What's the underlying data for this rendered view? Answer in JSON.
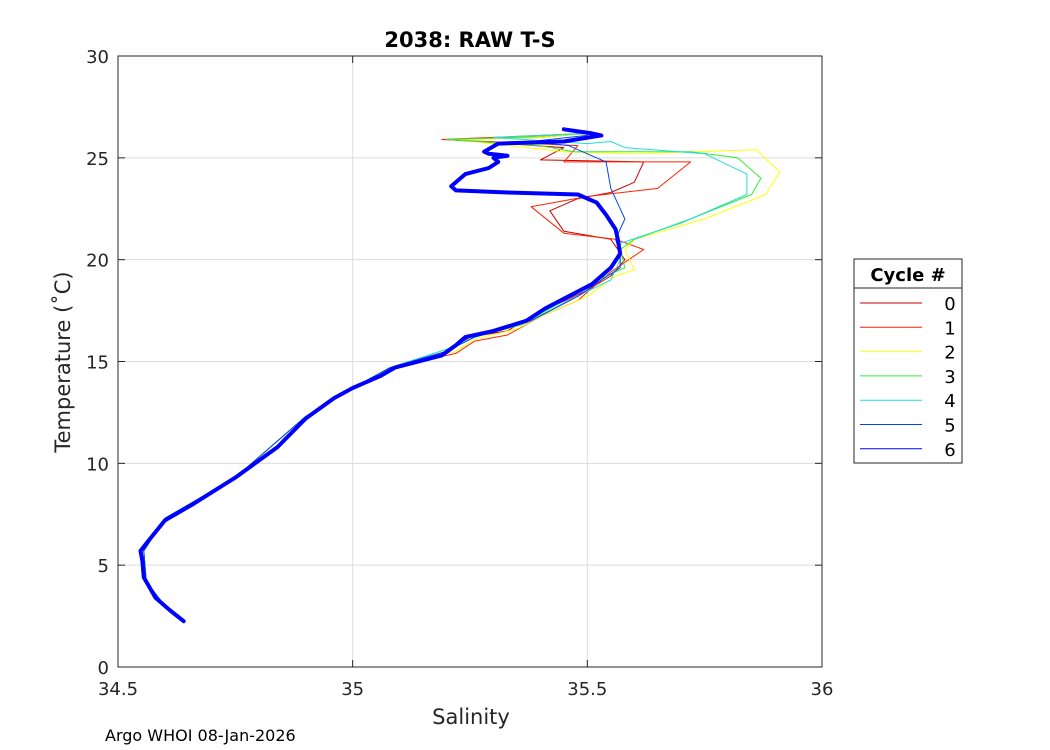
{
  "chart_data": {
    "type": "line",
    "title": "2038: RAW T-S",
    "xlabel": "Salinity",
    "ylabel": "Temperature (˚C)",
    "xlim": [
      34.5,
      36
    ],
    "ylim": [
      0,
      30
    ],
    "xticks": [
      "34.5",
      "35",
      "35.5",
      "36"
    ],
    "yticks": [
      "0",
      "5",
      "10",
      "15",
      "20",
      "25",
      "30"
    ],
    "xtick_values": [
      34.5,
      35,
      35.5,
      36
    ],
    "ytick_values": [
      0,
      5,
      10,
      15,
      20,
      25,
      30
    ],
    "grid": true,
    "legend": {
      "title": "Cycle #",
      "placement": "right"
    },
    "footer": "Argo WHOI 08-Jan-2026",
    "series": [
      {
        "name": "0",
        "color": "#cc0000",
        "width": 1,
        "points": [
          [
            34.64,
            2.3
          ],
          [
            34.6,
            3.0
          ],
          [
            34.56,
            4.2
          ],
          [
            34.555,
            5.7
          ],
          [
            34.6,
            7.3
          ],
          [
            34.75,
            9.3
          ],
          [
            34.9,
            12.3
          ],
          [
            35.0,
            13.7
          ],
          [
            35.08,
            14.7
          ],
          [
            35.2,
            15.5
          ],
          [
            35.25,
            16.2
          ],
          [
            35.33,
            16.5
          ],
          [
            35.38,
            17.2
          ],
          [
            35.5,
            18.5
          ],
          [
            35.55,
            19.2
          ],
          [
            35.58,
            20.0
          ],
          [
            35.55,
            21.0
          ],
          [
            35.45,
            21.4
          ],
          [
            35.42,
            22.4
          ],
          [
            35.48,
            23.0
          ],
          [
            35.55,
            23.3
          ],
          [
            35.6,
            23.8
          ],
          [
            35.62,
            24.8
          ],
          [
            35.4,
            24.9
          ],
          [
            35.45,
            25.5
          ],
          [
            35.2,
            25.9
          ],
          [
            35.4,
            26.0
          ],
          [
            35.5,
            26.2
          ]
        ]
      },
      {
        "name": "1",
        "color": "#ff2200",
        "width": 1,
        "points": [
          [
            34.64,
            2.3
          ],
          [
            34.6,
            3.0
          ],
          [
            34.56,
            4.2
          ],
          [
            34.555,
            5.7
          ],
          [
            34.6,
            7.3
          ],
          [
            34.75,
            9.3
          ],
          [
            34.9,
            12.3
          ],
          [
            35.0,
            13.7
          ],
          [
            35.08,
            14.7
          ],
          [
            35.22,
            15.4
          ],
          [
            35.26,
            16.0
          ],
          [
            35.33,
            16.3
          ],
          [
            35.4,
            17.2
          ],
          [
            35.48,
            18.0
          ],
          [
            35.55,
            19.4
          ],
          [
            35.62,
            20.5
          ],
          [
            35.56,
            21.0
          ],
          [
            35.45,
            21.3
          ],
          [
            35.38,
            22.6
          ],
          [
            35.5,
            23.1
          ],
          [
            35.65,
            23.5
          ],
          [
            35.72,
            24.8
          ],
          [
            35.45,
            24.8
          ],
          [
            35.48,
            25.6
          ],
          [
            35.19,
            25.9
          ],
          [
            35.35,
            26.05
          ],
          [
            35.5,
            26.2
          ]
        ]
      },
      {
        "name": "2",
        "color": "#ffff00",
        "width": 1,
        "points": [
          [
            34.64,
            2.3
          ],
          [
            34.6,
            3.0
          ],
          [
            34.56,
            4.2
          ],
          [
            34.555,
            5.7
          ],
          [
            34.6,
            7.3
          ],
          [
            34.75,
            9.3
          ],
          [
            34.9,
            12.3
          ],
          [
            35.0,
            13.7
          ],
          [
            35.08,
            14.7
          ],
          [
            35.22,
            15.5
          ],
          [
            35.26,
            16.1
          ],
          [
            35.35,
            16.6
          ],
          [
            35.4,
            17.2
          ],
          [
            35.5,
            18.2
          ],
          [
            35.56,
            19.2
          ],
          [
            35.6,
            19.5
          ],
          [
            35.58,
            20.5
          ],
          [
            35.6,
            21.0
          ],
          [
            35.75,
            22.0
          ],
          [
            35.88,
            23.2
          ],
          [
            35.91,
            24.3
          ],
          [
            35.86,
            25.4
          ],
          [
            35.6,
            25.2
          ],
          [
            35.45,
            25.3
          ],
          [
            35.22,
            25.9
          ],
          [
            35.4,
            26.0
          ],
          [
            35.5,
            26.2
          ]
        ]
      },
      {
        "name": "3",
        "color": "#33ee33",
        "width": 1,
        "points": [
          [
            34.64,
            2.3
          ],
          [
            34.6,
            3.0
          ],
          [
            34.56,
            4.2
          ],
          [
            34.555,
            5.7
          ],
          [
            34.6,
            7.3
          ],
          [
            34.75,
            9.3
          ],
          [
            34.9,
            12.3
          ],
          [
            35.0,
            13.7
          ],
          [
            35.08,
            14.7
          ],
          [
            35.2,
            15.6
          ],
          [
            35.26,
            16.2
          ],
          [
            35.36,
            16.8
          ],
          [
            35.45,
            18.0
          ],
          [
            35.52,
            19.0
          ],
          [
            35.58,
            19.6
          ],
          [
            35.57,
            20.5
          ],
          [
            35.6,
            21.0
          ],
          [
            35.72,
            22.0
          ],
          [
            35.85,
            23.2
          ],
          [
            35.87,
            24.0
          ],
          [
            35.82,
            25.0
          ],
          [
            35.72,
            25.3
          ],
          [
            35.47,
            25.3
          ],
          [
            35.4,
            25.6
          ],
          [
            35.2,
            25.9
          ],
          [
            35.35,
            26.0
          ],
          [
            35.5,
            26.2
          ]
        ]
      },
      {
        "name": "4",
        "color": "#22dddd",
        "width": 1,
        "points": [
          [
            34.64,
            2.3
          ],
          [
            34.6,
            3.0
          ],
          [
            34.56,
            4.2
          ],
          [
            34.555,
            5.7
          ],
          [
            34.6,
            7.3
          ],
          [
            34.75,
            9.3
          ],
          [
            34.9,
            12.3
          ],
          [
            35.0,
            13.7
          ],
          [
            35.08,
            14.7
          ],
          [
            35.2,
            15.6
          ],
          [
            35.26,
            16.2
          ],
          [
            35.37,
            16.9
          ],
          [
            35.46,
            18.0
          ],
          [
            35.55,
            19.0
          ],
          [
            35.57,
            20.0
          ],
          [
            35.57,
            20.8
          ],
          [
            35.7,
            21.8
          ],
          [
            35.84,
            23.2
          ],
          [
            35.84,
            24.2
          ],
          [
            35.75,
            25.2
          ],
          [
            35.58,
            25.5
          ],
          [
            35.55,
            25.8
          ],
          [
            35.5,
            25.7
          ],
          [
            35.3,
            26.0
          ],
          [
            35.5,
            26.2
          ]
        ]
      },
      {
        "name": "5",
        "color": "#0044ee",
        "width": 1,
        "points": [
          [
            34.64,
            2.3
          ],
          [
            34.6,
            3.0
          ],
          [
            34.56,
            4.2
          ],
          [
            34.555,
            5.7
          ],
          [
            34.6,
            7.3
          ],
          [
            34.75,
            9.3
          ],
          [
            34.9,
            12.3
          ],
          [
            35.0,
            13.7
          ],
          [
            35.08,
            14.7
          ],
          [
            35.2,
            15.5
          ],
          [
            35.26,
            16.2
          ],
          [
            35.38,
            17.0
          ],
          [
            35.48,
            18.2
          ],
          [
            35.53,
            19.0
          ],
          [
            35.57,
            19.6
          ],
          [
            35.57,
            20.3
          ],
          [
            35.56,
            21.0
          ],
          [
            35.58,
            22.0
          ],
          [
            35.55,
            23.5
          ],
          [
            35.54,
            24.8
          ],
          [
            35.5,
            25.2
          ],
          [
            35.46,
            25.6
          ],
          [
            35.38,
            25.8
          ],
          [
            35.5,
            26.1
          ],
          [
            35.5,
            26.2
          ]
        ]
      },
      {
        "name": "6",
        "color": "#0000ff",
        "width": 4,
        "points": [
          [
            34.64,
            2.25
          ],
          [
            34.61,
            2.8
          ],
          [
            34.58,
            3.4
          ],
          [
            34.555,
            4.4
          ],
          [
            34.552,
            5.2
          ],
          [
            34.548,
            5.7
          ],
          [
            34.565,
            6.2
          ],
          [
            34.6,
            7.2
          ],
          [
            34.66,
            8.0
          ],
          [
            34.75,
            9.3
          ],
          [
            34.84,
            10.8
          ],
          [
            34.9,
            12.2
          ],
          [
            34.96,
            13.2
          ],
          [
            35.0,
            13.7
          ],
          [
            35.06,
            14.3
          ],
          [
            35.09,
            14.7
          ],
          [
            35.19,
            15.3
          ],
          [
            35.22,
            15.8
          ],
          [
            35.24,
            16.2
          ],
          [
            35.3,
            16.5
          ],
          [
            35.37,
            17.0
          ],
          [
            35.41,
            17.6
          ],
          [
            35.46,
            18.2
          ],
          [
            35.51,
            18.8
          ],
          [
            35.55,
            19.6
          ],
          [
            35.57,
            20.3
          ],
          [
            35.565,
            21.0
          ],
          [
            35.56,
            21.5
          ],
          [
            35.54,
            22.2
          ],
          [
            35.52,
            22.8
          ],
          [
            35.48,
            23.2
          ],
          [
            35.33,
            23.3
          ],
          [
            35.22,
            23.4
          ],
          [
            35.21,
            23.6
          ],
          [
            35.24,
            24.2
          ],
          [
            35.29,
            24.5
          ],
          [
            35.31,
            24.8
          ],
          [
            35.3,
            25.0
          ],
          [
            35.33,
            25.1
          ],
          [
            35.29,
            25.2
          ],
          [
            35.28,
            25.3
          ],
          [
            35.31,
            25.7
          ],
          [
            35.45,
            25.8
          ],
          [
            35.53,
            26.1
          ],
          [
            35.51,
            26.2
          ],
          [
            35.48,
            26.3
          ],
          [
            35.45,
            26.4
          ]
        ]
      }
    ]
  }
}
